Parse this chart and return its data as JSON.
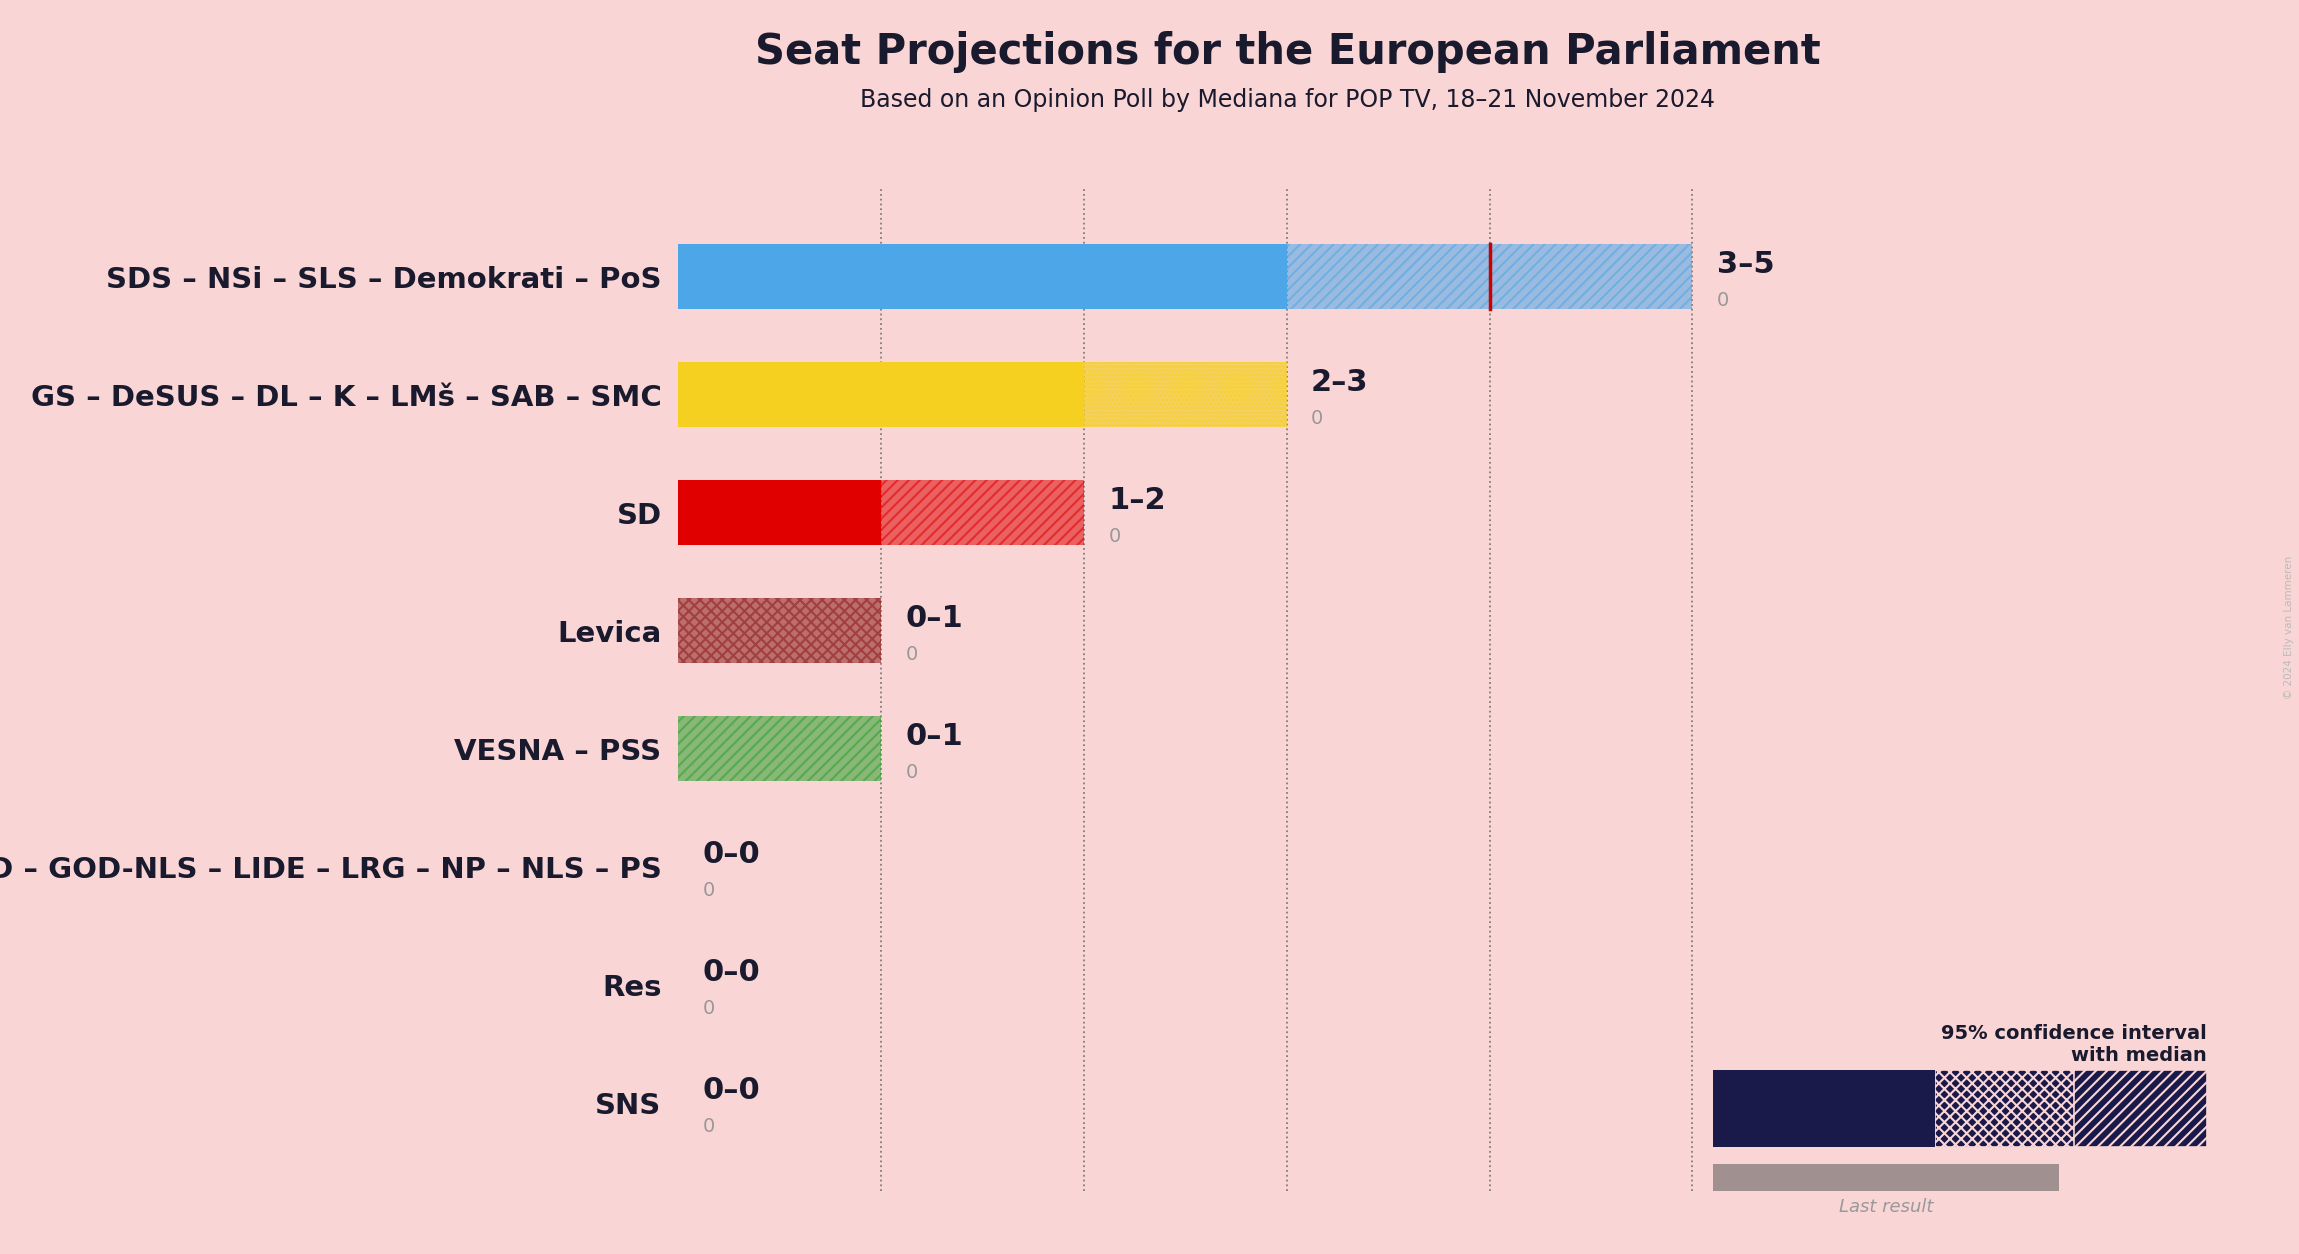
{
  "title": "Seat Projections for the European Parliament",
  "subtitle": "Based on an Opinion Poll by Mediana for POP TV, 18–21 November 2024",
  "background_color": "#f9d5d5",
  "parties": [
    "SDS – NSi – SLS – Demokrati – PoS",
    "GS – DeSUS – DL – K – LMš – SAB – SMC",
    "SD",
    "Levica",
    "VESNA – PSS",
    "ZS – ND – DD – GOD – GOD-NLS – LIDE – LRG – NP – NLS – PS",
    "Res",
    "SNS"
  ],
  "median_values": [
    3,
    2,
    1,
    0,
    0,
    0,
    0,
    0
  ],
  "ci_high": [
    5,
    3,
    2,
    1,
    1,
    0,
    0,
    0
  ],
  "last_result": [
    0,
    0,
    0,
    0,
    0,
    0,
    0,
    0
  ],
  "labels": [
    "3–5",
    "2–3",
    "1–2",
    "0–1",
    "0–1",
    "0–0",
    "0–0",
    "0–0"
  ],
  "bar_colors": [
    "#4da6e8",
    "#f5d020",
    "#e00000",
    "#8b1a1a",
    "#2ca02c",
    "#f9d5d5",
    "#f9d5d5",
    "#f9d5d5"
  ],
  "hatch_patterns": [
    "///",
    "oooo",
    "///",
    "xxx",
    "///",
    "",
    "",
    ""
  ],
  "median_line_color": "#1a1a4a",
  "red_line_value": 4,
  "legend_box_color": "#1a1a4a",
  "legend_gray_color": "#a09090",
  "title_fontsize": 30,
  "subtitle_fontsize": 17,
  "tick_label_fontsize": 21,
  "range_label_fontsize": 22,
  "last_result_fontsize": 14,
  "bar_height": 0.55,
  "dotted_line_positions": [
    1,
    2,
    3,
    4,
    5
  ],
  "copyright": "© 2024 Elly van Lammeren"
}
